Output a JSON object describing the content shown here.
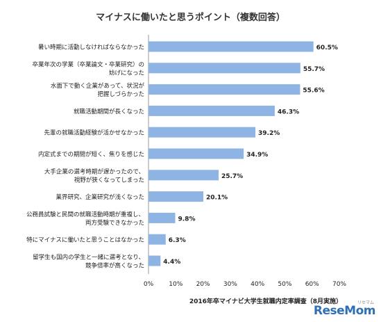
{
  "chart_data": {
    "type": "bar",
    "orientation": "horizontal",
    "title": "マイナスに働いたと思うポイント（複数回答）",
    "categories": [
      [
        "暑い時期に活動しなければならなかった"
      ],
      [
        "卒業年次の学業（卒業論文・卒業研究）の",
        "妨げになった"
      ],
      [
        "水面下で動く企業があって、状況が",
        "把握しづらかった"
      ],
      [
        "就職活動期間が長くなった"
      ],
      [
        "先輩の就職活動経験が活かせなかった"
      ],
      [
        "内定式までの期間が短く、焦りを感じた"
      ],
      [
        "大手企業の選考時期が遅かったので、",
        "視野が狭くなってしまった"
      ],
      [
        "業界研究、企業研究が浅くなった"
      ],
      [
        "公務員試験と民間の就職活動時期が重複し、",
        "両方受験できなかった"
      ],
      [
        "特にマイナスに働いたと思うことはなかった"
      ],
      [
        "留学生も国内の学生と一緒に選考となり、",
        "競争倍率が高くなった"
      ]
    ],
    "values": [
      60.5,
      55.7,
      55.6,
      46.3,
      39.2,
      34.9,
      25.7,
      20.1,
      9.8,
      6.3,
      4.4
    ],
    "value_labels": [
      "60.5%",
      "55.7%",
      "55.6%",
      "46.3%",
      "39.2%",
      "34.9%",
      "25.7%",
      "20.1%",
      "9.8%",
      "6.3%",
      "4.4%"
    ],
    "xlim": [
      0,
      70
    ],
    "xticks": [
      "0%",
      "10%",
      "20%",
      "30%",
      "40%",
      "50%",
      "60%",
      "70%"
    ],
    "bar_color": "#8eb4e3",
    "grid": false
  },
  "source": "2016年卒マイナビ大学生就職内定率調査（8月実施）",
  "logo": {
    "main": "ReseMom",
    "small": "リセマム"
  }
}
